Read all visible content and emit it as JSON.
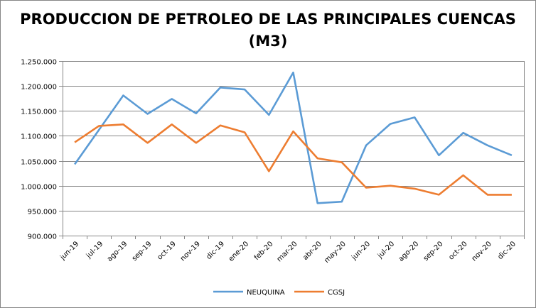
{
  "chart_data": {
    "type": "line",
    "title_line1": "PRODUCCION DE PETROLEO DE LAS PRINCIPALES CUENCAS",
    "title_line2": "(M3)",
    "xlabel": "",
    "ylabel": "",
    "categories": [
      "jun-19",
      "jul-19",
      "ago-19",
      "sep-19",
      "oct-19",
      "nov-19",
      "dic-19",
      "ene-20",
      "feb-20",
      "mar-20",
      "abr-20",
      "may-20",
      "jun-20",
      "jul-20",
      "ago-20",
      "sep-20",
      "oct-20",
      "nov-20",
      "dic-20"
    ],
    "ylim": [
      900000,
      1250000
    ],
    "yticks": [
      900000,
      950000,
      1000000,
      1050000,
      1100000,
      1150000,
      1200000,
      1250000
    ],
    "ytick_labels": [
      "900.000",
      "950.000",
      "1.000.000",
      "1.050.000",
      "1.100.000",
      "1.150.000",
      "1.200.000",
      "1.250.000"
    ],
    "grid": true,
    "legend_position": "bottom",
    "series": [
      {
        "name": "NEUQUINA",
        "color": "#5B9BD5",
        "values": [
          1043000,
          1112000,
          1181000,
          1144000,
          1174000,
          1145000,
          1197000,
          1193000,
          1142000,
          1227000,
          965000,
          968000,
          1081000,
          1124000,
          1137000,
          1061000,
          1106000,
          1081000,
          1061000
        ]
      },
      {
        "name": "CGSJ",
        "color": "#ED7D31",
        "values": [
          1087000,
          1120000,
          1123000,
          1086000,
          1123000,
          1086000,
          1121000,
          1107000,
          1029000,
          1109000,
          1055000,
          1047000,
          996000,
          1000000,
          994000,
          982000,
          1021000,
          982000,
          982000
        ]
      }
    ]
  }
}
